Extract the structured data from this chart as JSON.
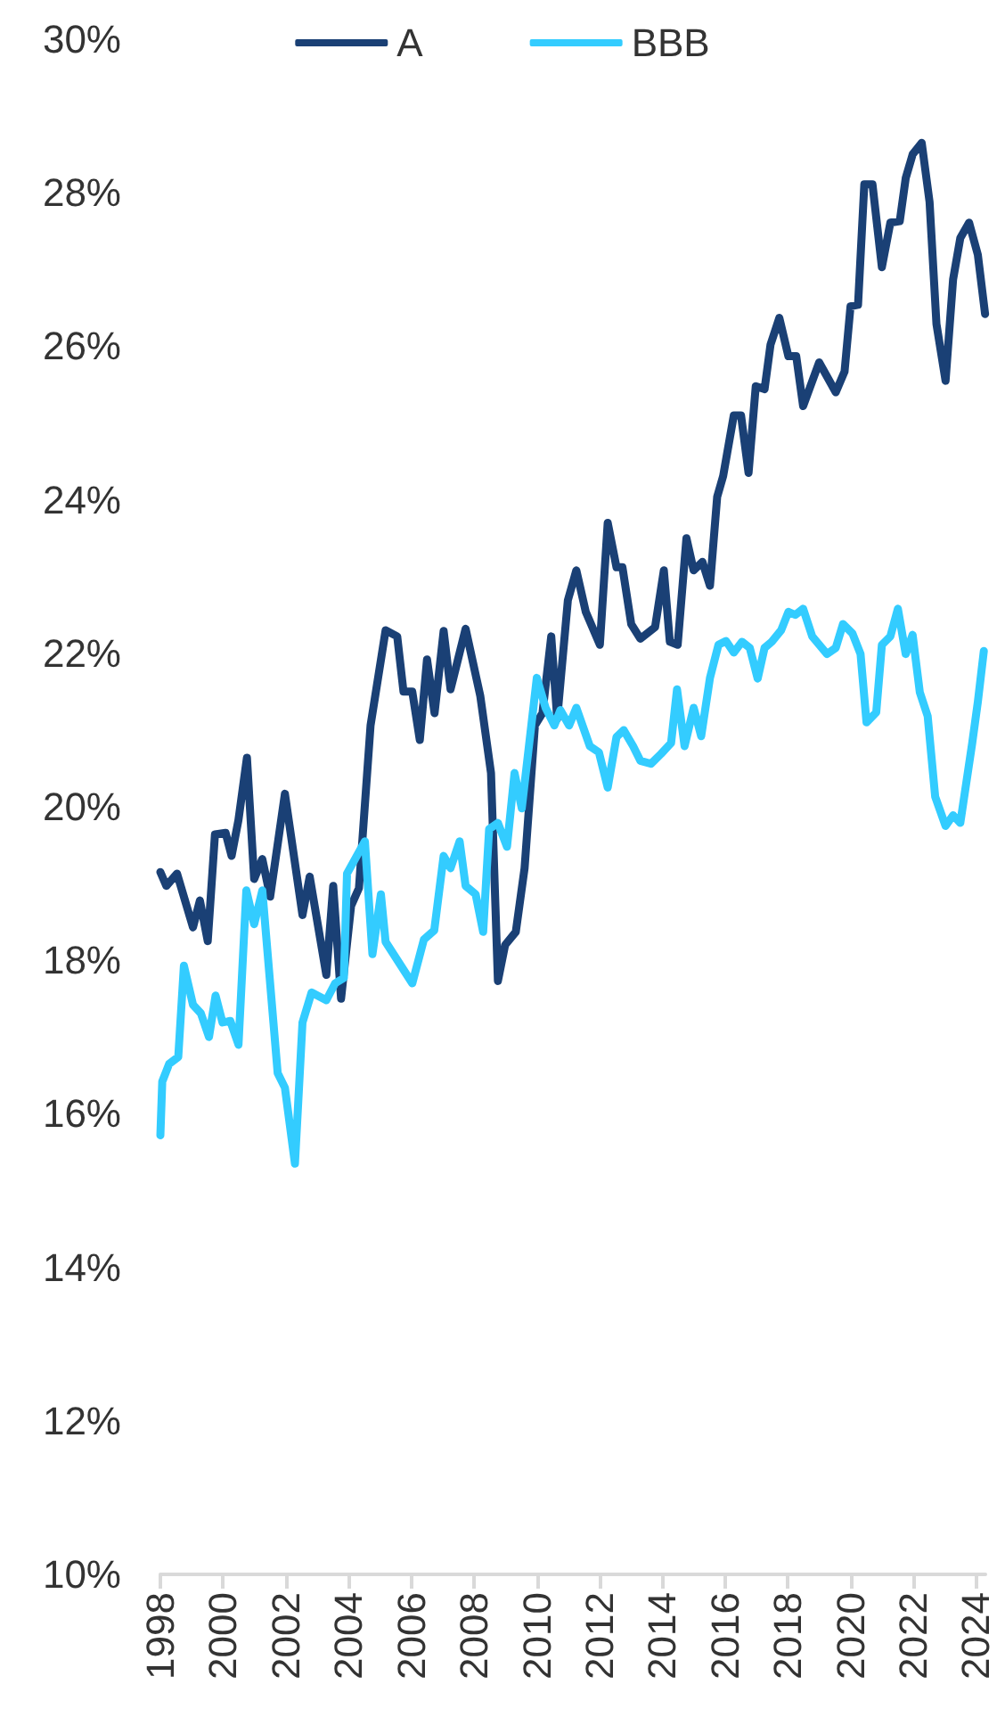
{
  "chart_data": {
    "type": "line",
    "legend": "top",
    "grid": false,
    "marker": "none",
    "line_style": "solid",
    "xlim": [
      1998,
      2024.3
    ],
    "xticks": [
      1998,
      2000,
      2002,
      2004,
      2006,
      2008,
      2010,
      2012,
      2014,
      2016,
      2018,
      2020,
      2022,
      2024
    ],
    "ylim": [
      10,
      30
    ],
    "yticks": [
      {
        "value": 10,
        "label": "10%"
      },
      {
        "value": 12,
        "label": "12%"
      },
      {
        "value": 14,
        "label": "14%"
      },
      {
        "value": 16,
        "label": "16%"
      },
      {
        "value": 18,
        "label": "18%"
      },
      {
        "value": 20,
        "label": "20%"
      },
      {
        "value": 22,
        "label": "22%"
      },
      {
        "value": 24,
        "label": "24%"
      },
      {
        "value": 26,
        "label": "26%"
      },
      {
        "value": 28,
        "label": "28%"
      },
      {
        "value": 30,
        "label": "30%"
      }
    ],
    "series": [
      {
        "name": "A",
        "color": "#1a4075",
        "x": [
          1998.0,
          1998.19,
          1998.53,
          1999.04,
          1999.26,
          1999.51,
          1999.74,
          2000.08,
          2000.27,
          2000.49,
          2000.76,
          2000.99,
          2001.25,
          2001.5,
          2001.97,
          2002.53,
          2002.76,
          2003.29,
          2003.51,
          2003.76,
          2004.08,
          2004.33,
          2004.7,
          2005.18,
          2005.55,
          2005.75,
          2006.03,
          2006.27,
          2006.5,
          2006.74,
          2007.03,
          2007.25,
          2007.73,
          2008.2,
          2008.54,
          2008.76,
          2008.99,
          2009.33,
          2009.61,
          2009.94,
          2010.18,
          2010.46,
          2010.65,
          2010.99,
          2011.26,
          2011.56,
          2012.01,
          2012.26,
          2012.54,
          2012.73,
          2013.01,
          2013.3,
          2013.77,
          2014.05,
          2014.24,
          2014.49,
          2014.77,
          2015.0,
          2015.28,
          2015.52,
          2015.75,
          2015.94,
          2016.28,
          2016.51,
          2016.75,
          2016.98,
          2017.26,
          2017.45,
          2017.73,
          2018.02,
          2018.27,
          2018.49,
          2019.0,
          2019.53,
          2019.81,
          2020.0,
          2020.24,
          2020.44,
          2020.7,
          2021.0,
          2021.27,
          2021.57,
          2021.76,
          2021.98,
          2022.27,
          2022.52,
          2022.74,
          2023.03,
          2023.27,
          2023.5,
          2023.78,
          2024.06,
          2024.29
        ],
        "values": [
          19.15,
          18.97,
          19.13,
          18.43,
          18.78,
          18.25,
          19.64,
          19.66,
          19.36,
          19.83,
          20.64,
          19.06,
          19.32,
          18.83,
          20.17,
          18.59,
          19.09,
          17.81,
          18.97,
          17.5,
          18.71,
          18.94,
          21.06,
          22.3,
          22.22,
          21.5,
          21.5,
          20.87,
          21.92,
          21.22,
          22.29,
          21.53,
          22.32,
          21.44,
          20.44,
          17.73,
          18.2,
          18.37,
          19.2,
          21.06,
          21.22,
          22.22,
          21.15,
          22.69,
          23.08,
          22.54,
          22.11,
          23.7,
          23.12,
          23.12,
          22.38,
          22.19,
          22.34,
          23.08,
          22.15,
          22.11,
          23.5,
          23.08,
          23.19,
          22.88,
          24.04,
          24.31,
          25.1,
          25.1,
          24.35,
          25.48,
          25.44,
          26.02,
          26.37,
          25.87,
          25.87,
          25.22,
          25.79,
          25.4,
          25.67,
          26.52,
          26.54,
          28.11,
          28.11,
          27.03,
          27.61,
          27.63,
          28.19,
          28.5,
          28.65,
          27.88,
          26.29,
          25.55,
          26.87,
          27.41,
          27.61,
          27.19,
          26.42
        ]
      },
      {
        "name": "BBB",
        "color": "#33ccff",
        "x": [
          1998.0,
          1998.06,
          1998.28,
          1998.57,
          1998.75,
          1999.04,
          1999.29,
          1999.55,
          1999.76,
          1999.98,
          2000.23,
          2000.49,
          2000.74,
          2000.99,
          2001.25,
          2001.74,
          2001.97,
          2002.29,
          2002.53,
          2002.82,
          2003.29,
          2003.57,
          2003.85,
          2003.95,
          2004.52,
          2004.76,
          2005.03,
          2005.18,
          2006.03,
          2006.4,
          2006.73,
          2007.03,
          2007.25,
          2007.54,
          2007.73,
          2008.05,
          2008.29,
          2008.48,
          2008.76,
          2009.05,
          2009.29,
          2009.52,
          2010.0,
          2010.28,
          2010.56,
          2010.75,
          2011.03,
          2011.26,
          2011.69,
          2011.98,
          2012.26,
          2012.54,
          2012.77,
          2013.07,
          2013.3,
          2013.64,
          2013.96,
          2014.28,
          2014.47,
          2014.71,
          2015.0,
          2015.24,
          2015.52,
          2015.79,
          2016.03,
          2016.28,
          2016.54,
          2016.79,
          2017.04,
          2017.26,
          2017.49,
          2017.79,
          2018.02,
          2018.24,
          2018.49,
          2018.78,
          2019.25,
          2019.53,
          2019.76,
          2020.06,
          2020.32,
          2020.51,
          2020.82,
          2021.0,
          2021.27,
          2021.51,
          2021.76,
          2021.98,
          2022.21,
          2022.46,
          2022.7,
          2023.03,
          2023.27,
          2023.5,
          2023.88,
          2024.06,
          2024.25
        ],
        "values": [
          15.72,
          16.42,
          16.65,
          16.74,
          17.93,
          17.42,
          17.31,
          17.0,
          17.54,
          17.19,
          17.21,
          16.9,
          18.91,
          18.47,
          18.91,
          16.53,
          16.34,
          15.35,
          17.19,
          17.58,
          17.48,
          17.7,
          17.77,
          19.13,
          19.55,
          18.08,
          18.86,
          18.24,
          17.7,
          18.27,
          18.39,
          19.36,
          19.2,
          19.55,
          18.97,
          18.86,
          18.37,
          19.71,
          19.79,
          19.48,
          20.44,
          19.98,
          21.68,
          21.29,
          21.06,
          21.26,
          21.06,
          21.29,
          20.79,
          20.71,
          20.25,
          20.91,
          21.0,
          20.79,
          20.6,
          20.56,
          20.69,
          20.83,
          21.53,
          20.79,
          21.29,
          20.92,
          21.68,
          22.11,
          22.16,
          22.01,
          22.15,
          22.07,
          21.67,
          22.07,
          22.15,
          22.3,
          22.54,
          22.5,
          22.58,
          22.22,
          21.99,
          22.07,
          22.38,
          22.26,
          21.99,
          21.1,
          21.23,
          22.11,
          22.22,
          22.58,
          21.99,
          22.24,
          21.49,
          21.18,
          20.13,
          19.75,
          19.89,
          19.79,
          20.83,
          21.37,
          22.03
        ]
      }
    ]
  }
}
